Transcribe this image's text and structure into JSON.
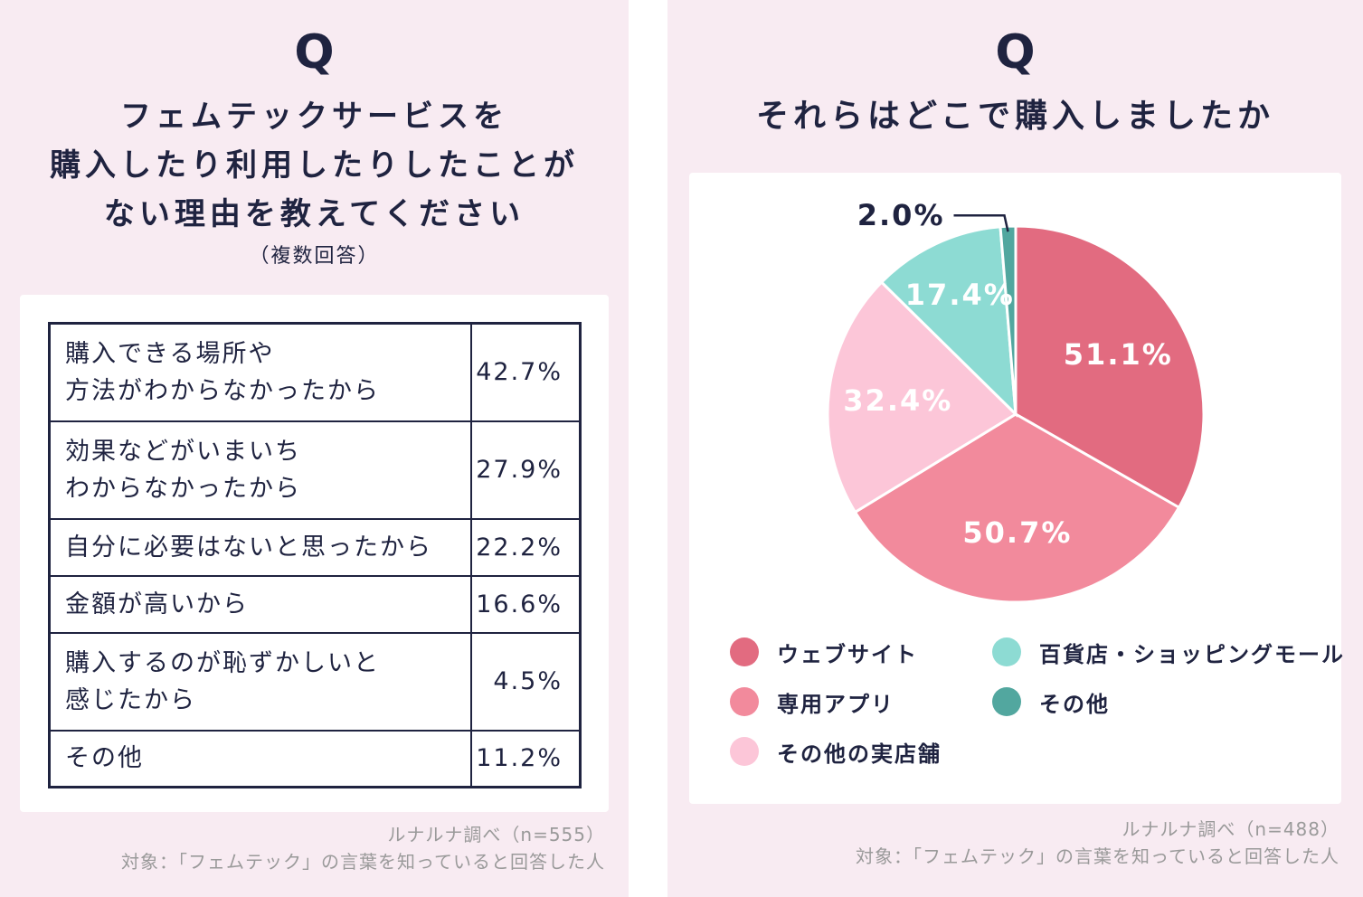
{
  "left": {
    "q_mark": "Q",
    "title_lines": [
      "フェムテックサービスを",
      "購入したり利用したりしたことが",
      "ない理由を教えてください"
    ],
    "subtitle": "（複数回答）",
    "note_lines": [
      "ルナルナ調べ（n=555）",
      "対象：「フェムテック」の言葉を知っていると回答した人"
    ]
  },
  "right": {
    "q_mark": "Q",
    "title": "それらはどこで購入しましたか",
    "note_lines": [
      "ルナルナ調べ（n=488）",
      "対象：「フェムテック」の言葉を知っていると回答した人"
    ]
  },
  "chart_data": [
    {
      "type": "table",
      "title": "フェムテックサービスを購入したり利用したりしたことがない理由を教えてください",
      "rows": [
        {
          "label_lines": [
            "購入できる場所や",
            "方法がわからなかったから"
          ],
          "value": 42.7,
          "display": "42.7%"
        },
        {
          "label_lines": [
            "効果などがいまいち",
            "わからなかったから"
          ],
          "value": 27.9,
          "display": "27.9%"
        },
        {
          "label_lines": [
            "自分に必要はないと思ったから"
          ],
          "value": 22.2,
          "display": "22.2%"
        },
        {
          "label_lines": [
            "金額が高いから"
          ],
          "value": 16.6,
          "display": "16.6%"
        },
        {
          "label_lines": [
            "購入するのが恥ずかしいと",
            "感じたから"
          ],
          "value": 4.5,
          "display": "4.5%"
        },
        {
          "label_lines": [
            "その他"
          ],
          "value": 11.2,
          "display": "11.2%"
        }
      ]
    },
    {
      "type": "pie",
      "title": "それらはどこで購入しましたか",
      "slices": [
        {
          "name": "ウェブサイト",
          "value": 51.1,
          "label": "51.1%",
          "color": "#e26b80"
        },
        {
          "name": "専用アプリ",
          "value": 50.7,
          "label": "50.7%",
          "color": "#f28a9c"
        },
        {
          "name": "その他の実店舗",
          "value": 32.4,
          "label": "32.4%",
          "color": "#fcc6d8"
        },
        {
          "name": "百貨店・ショッピングモール",
          "value": 17.4,
          "label": "17.4%",
          "color": "#8ddbd3"
        },
        {
          "name": "その他",
          "value": 2.0,
          "label": "2.0%",
          "color": "#52a79f"
        }
      ],
      "legend": [
        "ウェブサイト",
        "百貨店・ショッピングモール",
        "専用アプリ",
        "その他",
        "その他の実店舗"
      ],
      "legend_colors": [
        "#e26b80",
        "#8ddbd3",
        "#f28a9c",
        "#52a79f",
        "#fcc6d8"
      ]
    }
  ]
}
